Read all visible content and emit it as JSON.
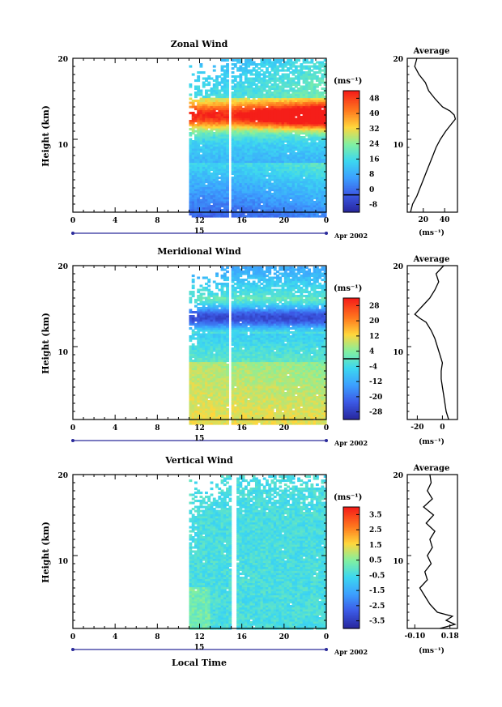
{
  "x_axis": {
    "ticks": [
      "0",
      "4",
      "8",
      "12",
      "16",
      "20",
      "0"
    ],
    "day_label": "15",
    "month_label": "Apr 2002",
    "xlabel": "Local Time"
  },
  "chart_data": [
    {
      "type": "heatmap",
      "title": "Zonal Wind",
      "ylabel": "Height (km)",
      "yticks": [
        "20",
        "10"
      ],
      "ylim": [
        1,
        20
      ],
      "colorbar": {
        "unit": "(ms⁻¹)",
        "ticks": [
          "48",
          "40",
          "32",
          "24",
          "16",
          "8",
          "0",
          "-8"
        ],
        "range": [
          -8,
          48
        ],
        "zero_line": true
      },
      "data_columns_hours": [
        11,
        24
      ],
      "gap_hours": [
        14.6,
        15.0
      ],
      "avg": {
        "title": "Average",
        "yticks": [
          "20",
          "10"
        ],
        "xticks": [
          "20",
          "40"
        ],
        "xlim": [
          5,
          52
        ],
        "xlabel": "(ms⁻¹)",
        "heights": [
          1,
          2,
          3,
          4,
          5,
          6,
          7,
          8,
          9,
          10,
          11,
          12,
          12.5,
          13,
          13.5,
          14,
          15,
          16,
          17,
          18,
          19,
          20
        ],
        "values": [
          8,
          10,
          14,
          17,
          20,
          23,
          26,
          29,
          32,
          36,
          41,
          47,
          50,
          49,
          45,
          38,
          31,
          25,
          22,
          16,
          12,
          14
        ]
      },
      "colors": [
        "#4444dd",
        "#3a6cf0",
        "#3fa3ff",
        "#44d6f0",
        "#7ff0a0",
        "#ffd23a",
        "#ff7a1a",
        "#ff2a1a"
      ]
    },
    {
      "type": "heatmap",
      "title": "Meridional Wind",
      "ylabel": "Height (km)",
      "yticks": [
        "20",
        "10"
      ],
      "ylim": [
        1,
        20
      ],
      "colorbar": {
        "unit": "(ms⁻¹)",
        "ticks": [
          "28",
          "20",
          "12",
          "4",
          "-4",
          "-12",
          "-20",
          "-28"
        ],
        "range": [
          -28,
          28
        ],
        "zero_line": true
      },
      "data_columns_hours": [
        11,
        24
      ],
      "gap_hours": [
        14.6,
        15.0
      ],
      "avg": {
        "title": "Average",
        "yticks": [
          "20",
          "10"
        ],
        "xticks": [
          "-20",
          "0"
        ],
        "xlim": [
          -28,
          12
        ],
        "xlabel": "(ms⁻¹)",
        "heights": [
          1,
          2,
          3,
          4,
          5,
          6,
          7,
          8,
          9,
          10,
          11,
          12,
          13,
          13.5,
          14,
          15,
          16,
          17,
          18,
          19,
          20
        ],
        "values": [
          5,
          3,
          2,
          1,
          0,
          -1,
          -1,
          0,
          -2,
          -4,
          -6,
          -9,
          -13,
          -18,
          -22,
          -16,
          -10,
          -6,
          -3,
          -5,
          1
        ]
      },
      "colors": [
        "#2a2aa0",
        "#3a55e0",
        "#3fa3ff",
        "#44d6f0",
        "#7ff0a0",
        "#ffd23a",
        "#ff7a1a",
        "#ff2a1a"
      ]
    },
    {
      "type": "heatmap",
      "title": "Vertical Wind",
      "ylabel": "Height (km)",
      "yticks": [
        "20",
        "10"
      ],
      "ylim": [
        1,
        20
      ],
      "colorbar": {
        "unit": "(ms⁻¹)",
        "ticks": [
          "3.5",
          "2.5",
          "1.5",
          "0.5",
          "-0.5",
          "-1.5",
          "-2.5",
          "-3.5"
        ],
        "range": [
          -4,
          4
        ],
        "zero_line": false
      },
      "data_columns_hours": [
        11,
        24
      ],
      "gap_hours": [
        15.0,
        15.4
      ],
      "avg": {
        "title": "Average",
        "yticks": [
          "20",
          "10"
        ],
        "xticks": [
          "-0.10",
          "0.18"
        ],
        "xlim": [
          -0.16,
          0.24
        ],
        "xlabel": "(ms⁻¹)",
        "heights": [
          1,
          1.5,
          2,
          2.5,
          3,
          3.5,
          4,
          5,
          6,
          7,
          8,
          9,
          10,
          11,
          12,
          13,
          14,
          15,
          16,
          17,
          18,
          19,
          20
        ],
        "values": [
          0.1,
          0.22,
          0.15,
          0.2,
          0.08,
          0.05,
          0.02,
          -0.02,
          -0.06,
          0.0,
          -0.02,
          0.03,
          0.0,
          0.04,
          0.02,
          0.06,
          -0.01,
          0.05,
          -0.03,
          0.04,
          0.0,
          0.03,
          0.02
        ]
      },
      "colors": [
        "#2a2aa0",
        "#3a55e0",
        "#3fa3ff",
        "#44d6f0",
        "#7ff0a0",
        "#ffd23a",
        "#ff7a1a",
        "#ff2a1a"
      ]
    }
  ]
}
